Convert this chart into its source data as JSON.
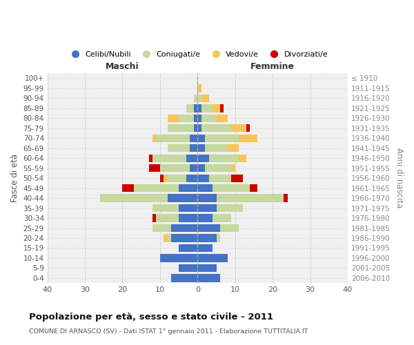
{
  "age_groups": [
    "0-4",
    "5-9",
    "10-14",
    "15-19",
    "20-24",
    "25-29",
    "30-34",
    "35-39",
    "40-44",
    "45-49",
    "50-54",
    "55-59",
    "60-64",
    "65-69",
    "70-74",
    "75-79",
    "80-84",
    "85-89",
    "90-94",
    "95-99",
    "100+"
  ],
  "birth_years": [
    "2006-2010",
    "2001-2005",
    "1996-2000",
    "1991-1995",
    "1986-1990",
    "1981-1985",
    "1976-1980",
    "1971-1975",
    "1966-1970",
    "1961-1965",
    "1956-1960",
    "1951-1955",
    "1946-1950",
    "1941-1945",
    "1936-1940",
    "1931-1935",
    "1926-1930",
    "1921-1925",
    "1916-1920",
    "1911-1915",
    "≤ 1910"
  ],
  "maschi": {
    "celibi": [
      7,
      5,
      10,
      5,
      7,
      7,
      5,
      5,
      8,
      5,
      3,
      2,
      3,
      2,
      2,
      1,
      1,
      1,
      0,
      0,
      0
    ],
    "coniugati": [
      0,
      0,
      0,
      0,
      1,
      5,
      6,
      7,
      18,
      12,
      5,
      8,
      9,
      6,
      9,
      7,
      4,
      2,
      1,
      0,
      0
    ],
    "vedovi": [
      0,
      0,
      0,
      0,
      1,
      0,
      0,
      0,
      0,
      0,
      1,
      0,
      0,
      0,
      1,
      0,
      3,
      0,
      0,
      0,
      0
    ],
    "divorziati": [
      0,
      0,
      0,
      0,
      0,
      0,
      1,
      0,
      0,
      3,
      1,
      3,
      1,
      0,
      0,
      0,
      0,
      0,
      0,
      0,
      0
    ]
  },
  "femmine": {
    "nubili": [
      6,
      5,
      8,
      4,
      5,
      6,
      4,
      5,
      5,
      4,
      3,
      2,
      3,
      2,
      2,
      1,
      1,
      1,
      0,
      0,
      0
    ],
    "coniugate": [
      0,
      0,
      0,
      0,
      1,
      5,
      5,
      7,
      18,
      10,
      6,
      7,
      8,
      6,
      9,
      8,
      4,
      3,
      1,
      0,
      0
    ],
    "vedove": [
      0,
      0,
      0,
      0,
      0,
      0,
      0,
      0,
      0,
      0,
      0,
      1,
      2,
      3,
      5,
      4,
      3,
      2,
      2,
      1,
      0
    ],
    "divorziate": [
      0,
      0,
      0,
      0,
      0,
      0,
      0,
      0,
      1,
      2,
      3,
      0,
      0,
      0,
      0,
      1,
      0,
      1,
      0,
      0,
      0
    ]
  },
  "colors": {
    "celibi": "#4472c4",
    "coniugati": "#c5d9a0",
    "vedovi": "#f9c45a",
    "divorziati": "#cc0000"
  },
  "title": "Popolazione per età, sesso e stato civile - 2011",
  "subtitle": "COMUNE DI ARNASCO (SV) - Dati ISTAT 1° gennaio 2011 - Elaborazione TUTTITALIA.IT",
  "xlabel_left": "Maschi",
  "xlabel_right": "Femmine",
  "ylabel_left": "Fasce di età",
  "ylabel_right": "Anni di nascita",
  "xlim": 40,
  "legend_labels": [
    "Celibi/Nubili",
    "Coniugati/e",
    "Vedovi/e",
    "Divorziati/e"
  ],
  "bg_color": "#ffffff",
  "plot_bg": "#f0f0f0",
  "grid_color": "#cccccc"
}
